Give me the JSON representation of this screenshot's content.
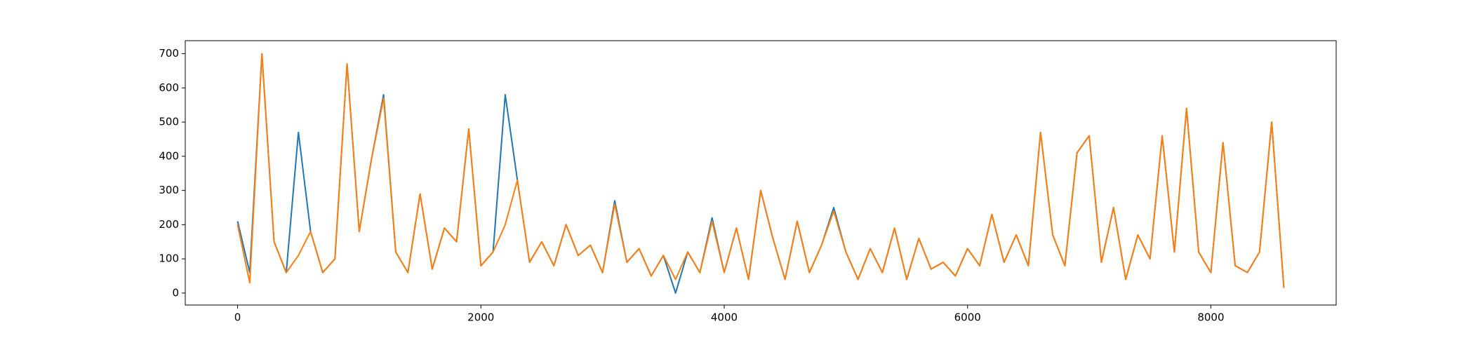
{
  "chart_data": {
    "type": "line",
    "x": [
      0,
      100,
      200,
      300,
      400,
      500,
      600,
      700,
      800,
      900,
      1000,
      1100,
      1200,
      1300,
      1400,
      1500,
      1600,
      1700,
      1800,
      1900,
      2000,
      2100,
      2200,
      2300,
      2400,
      2500,
      2600,
      2700,
      2800,
      2900,
      3000,
      3100,
      3200,
      3300,
      3400,
      3500,
      3600,
      3700,
      3800,
      3900,
      4000,
      4100,
      4200,
      4300,
      4400,
      4500,
      4600,
      4700,
      4800,
      4900,
      5000,
      5100,
      5200,
      5300,
      5400,
      5500,
      5600,
      5700,
      5800,
      5900,
      6000,
      6100,
      6200,
      6300,
      6400,
      6500,
      6600,
      6700,
      6800,
      6900,
      7000,
      7100,
      7200,
      7300,
      7400,
      7500,
      7600,
      7700,
      7800,
      7900,
      8000,
      8100,
      8200,
      8300,
      8400,
      8500,
      8600
    ],
    "series": [
      {
        "color": "#1f77b4",
        "values": [
          210,
          60,
          700,
          150,
          60,
          470,
          180,
          60,
          100,
          670,
          180,
          390,
          580,
          120,
          60,
          290,
          70,
          190,
          150,
          480,
          80,
          120,
          580,
          330,
          90,
          150,
          80,
          200,
          110,
          140,
          60,
          270,
          90,
          130,
          50,
          110,
          0,
          120,
          60,
          220,
          60,
          190,
          40,
          300,
          160,
          40,
          210,
          60,
          140,
          250,
          120,
          40,
          130,
          60,
          190,
          40,
          160,
          70,
          90,
          50,
          130,
          80,
          230,
          90,
          170,
          80,
          470,
          170,
          80,
          410,
          460,
          90,
          250,
          40,
          170,
          100,
          460,
          120,
          540,
          120,
          60,
          440,
          80,
          60,
          120,
          500,
          15
        ]
      },
      {
        "color": "#ff7f0e",
        "values": [
          200,
          30,
          700,
          150,
          60,
          110,
          180,
          60,
          100,
          670,
          180,
          390,
          570,
          120,
          60,
          290,
          70,
          190,
          150,
          480,
          80,
          120,
          200,
          330,
          90,
          150,
          80,
          200,
          110,
          140,
          60,
          260,
          90,
          130,
          50,
          110,
          40,
          120,
          60,
          210,
          60,
          190,
          40,
          300,
          160,
          40,
          210,
          60,
          140,
          240,
          120,
          40,
          130,
          60,
          190,
          40,
          160,
          70,
          90,
          50,
          130,
          80,
          230,
          90,
          170,
          80,
          470,
          170,
          80,
          410,
          460,
          90,
          250,
          40,
          170,
          100,
          460,
          120,
          540,
          120,
          60,
          440,
          80,
          60,
          120,
          500,
          15
        ]
      }
    ],
    "xlim": [
      -430,
      9030
    ],
    "ylim": [
      -35,
      738
    ],
    "xticks": [
      0,
      2000,
      4000,
      6000,
      8000
    ],
    "yticks": [
      0,
      100,
      200,
      300,
      400,
      500,
      600,
      700
    ],
    "grid": false
  }
}
